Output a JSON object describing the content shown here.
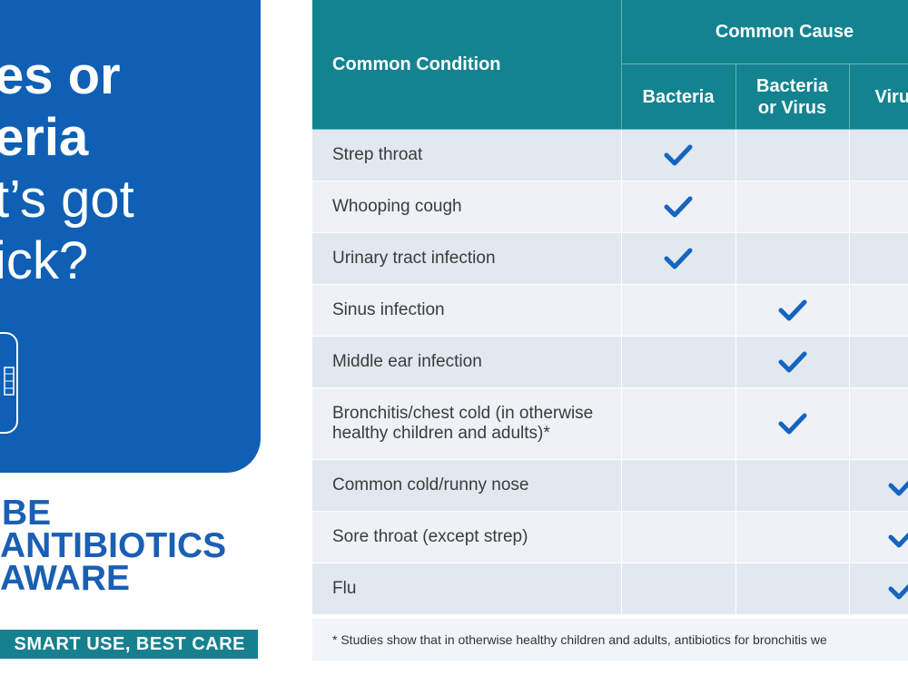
{
  "panel": {
    "headline_lines": [
      "es or",
      "eria",
      "t’s got",
      "ick?"
    ]
  },
  "logo": {
    "line1": "BE",
    "line2": "ANTIBIOTICS",
    "line3": "AWARE",
    "tagline": "SMART USE, BEST CARE"
  },
  "table": {
    "condition_header": "Common Condition",
    "group_header": "Common Cause",
    "cause_headers": [
      "Bacteria",
      "Bacteria or Virus",
      "Viru"
    ],
    "rows": [
      {
        "condition": "Strep throat",
        "cause": "Bacteria"
      },
      {
        "condition": "Whooping cough",
        "cause": "Bacteria"
      },
      {
        "condition": "Urinary tract infection",
        "cause": "Bacteria"
      },
      {
        "condition": "Sinus infection",
        "cause": "Bacteria or Virus"
      },
      {
        "condition": "Middle ear infection",
        "cause": "Bacteria or Virus"
      },
      {
        "condition": "Bronchitis/chest cold (in otherwise healthy children and adults)*",
        "cause": "Bacteria or Virus"
      },
      {
        "condition": "Common cold/runny nose",
        "cause": "Virus"
      },
      {
        "condition": "Sore throat (except strep)",
        "cause": "Virus"
      },
      {
        "condition": "Flu",
        "cause": "Virus"
      }
    ],
    "footnote": "* Studies show that in otherwise healthy children and adults, antibiotics for bronchitis we"
  },
  "colors": {
    "panel_blue": "#0f5fb4",
    "header_teal": "#138390",
    "check_blue": "#1565c0",
    "row_light": "#eef2f6",
    "row_dark": "#e1e8f0"
  },
  "icons": {
    "check": "checkmark-icon",
    "grid": "grid-icon"
  }
}
